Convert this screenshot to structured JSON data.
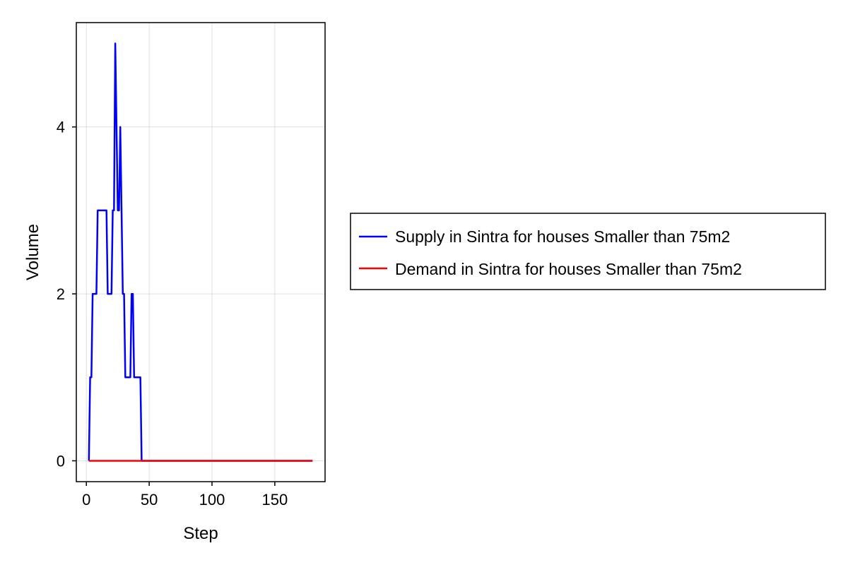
{
  "chart_data": {
    "type": "line",
    "title": "",
    "xlabel": "Step",
    "ylabel": "Volume",
    "xlim": [
      -8,
      190
    ],
    "ylim": [
      -0.25,
      5.25
    ],
    "xticks": [
      0,
      50,
      100,
      150
    ],
    "yticks": [
      0,
      2,
      4
    ],
    "xtick_labels": [
      "0",
      "50",
      "100",
      "150"
    ],
    "ytick_labels": [
      "0",
      "2",
      "4"
    ],
    "grid": true,
    "legend_position": "right",
    "series": [
      {
        "name": "Supply in Sintra for houses Smaller than 75m2",
        "color": "#0000ff",
        "x": [
          2,
          3,
          4,
          5,
          6,
          7,
          8,
          9,
          10,
          11,
          12,
          13,
          14,
          15,
          16,
          17,
          18,
          19,
          20,
          21,
          22,
          23,
          24,
          25,
          26,
          27,
          28,
          29,
          30,
          31,
          32,
          33,
          34,
          35,
          36,
          37,
          38,
          39,
          40,
          41,
          42,
          43,
          44,
          45,
          60,
          80,
          100,
          120,
          140,
          160,
          180
        ],
        "y": [
          0,
          1,
          1,
          2,
          2,
          2,
          2,
          3,
          3,
          3,
          3,
          3,
          3,
          3,
          3,
          2,
          2,
          2,
          2,
          3,
          3,
          5,
          4,
          3,
          3,
          4,
          3,
          2,
          2,
          1,
          1,
          1,
          1,
          1,
          2,
          2,
          1,
          1,
          1,
          1,
          1,
          1,
          0,
          0,
          0,
          0,
          0,
          0,
          0,
          0,
          0
        ]
      },
      {
        "name": "Demand in Sintra for houses Smaller than 75m2",
        "color": "#ff0000",
        "x": [
          2,
          180
        ],
        "y": [
          0,
          0
        ]
      }
    ]
  }
}
